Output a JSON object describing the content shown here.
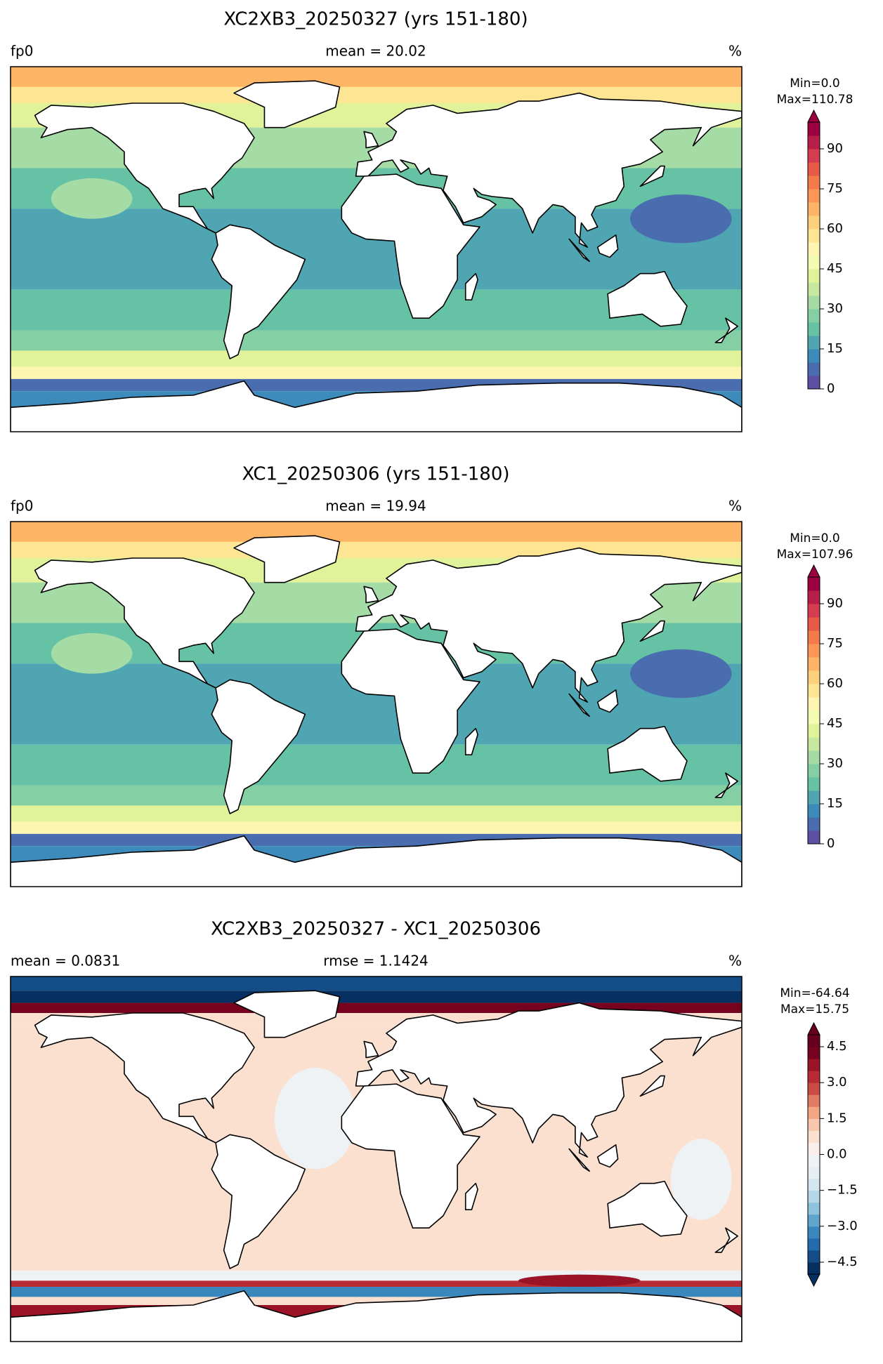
{
  "panels": [
    {
      "title": "XC2XB3_20250327 (yrs 151-180)",
      "left_label": "fp0",
      "center_label": "mean = 20.02",
      "right_label": "%",
      "colorbar": {
        "min_label": "Min=0.0",
        "max_label": "Max=110.78",
        "range": [
          0,
          100
        ],
        "extend": "max",
        "ticks": [
          0,
          15,
          30,
          45,
          60,
          75,
          90
        ],
        "colors": [
          "#5e4fa2",
          "#4a6db0",
          "#3d8bbb",
          "#4fa6b2",
          "#66c2a5",
          "#85cfa5",
          "#a5dba4",
          "#c7e89e",
          "#e0f39a",
          "#f3fab2",
          "#fef6b0",
          "#fee593",
          "#fdd07b",
          "#fdb565",
          "#fa9756",
          "#f47a4a",
          "#e65a47",
          "#d43d4f",
          "#b81f48",
          "#9e0142"
        ]
      }
    },
    {
      "title": "XC1_20250306 (yrs 151-180)",
      "left_label": "fp0",
      "center_label": "mean = 19.94",
      "right_label": "%",
      "colorbar": {
        "min_label": "Min=0.0",
        "max_label": "Max=107.96",
        "range": [
          0,
          100
        ],
        "extend": "max",
        "ticks": [
          0,
          15,
          30,
          45,
          60,
          75,
          90
        ],
        "colors": [
          "#5e4fa2",
          "#4a6db0",
          "#3d8bbb",
          "#4fa6b2",
          "#66c2a5",
          "#85cfa5",
          "#a5dba4",
          "#c7e89e",
          "#e0f39a",
          "#f3fab2",
          "#fef6b0",
          "#fee593",
          "#fdd07b",
          "#fdb565",
          "#fa9756",
          "#f47a4a",
          "#e65a47",
          "#d43d4f",
          "#b81f48",
          "#9e0142"
        ]
      }
    },
    {
      "title": "XC2XB3_20250327 - XC1_20250306",
      "left_label": "mean = 0.0831",
      "center_label": "rmse = 1.1424",
      "right_label": "%",
      "colorbar": {
        "min_label": "Min=-64.64",
        "max_label": "Max=15.75",
        "range": [
          -5,
          5
        ],
        "extend": "both",
        "ticks": [
          {
            "value": -4.5,
            "label": "−4.5"
          },
          {
            "value": -3,
            "label": "−3.0"
          },
          {
            "value": -1.5,
            "label": "−1.5"
          },
          {
            "value": 0,
            "label": "0.0"
          },
          {
            "value": 1.5,
            "label": "1.5"
          },
          {
            "value": 3,
            "label": "3.0"
          },
          {
            "value": 4.5,
            "label": "4.5"
          }
        ],
        "colors": [
          "#053061",
          "#134c87",
          "#246aae",
          "#3a87bd",
          "#5fa5cd",
          "#8fc2dd",
          "#b6d7e8",
          "#d3e6f0",
          "#e6eff4",
          "#eef2f5",
          "#fbeee8",
          "#fbe0d0",
          "#f9c7ad",
          "#f4a683",
          "#e17b61",
          "#cb4c45",
          "#b82b35",
          "#9a1327",
          "#760220",
          "#67001f"
        ]
      }
    }
  ]
}
